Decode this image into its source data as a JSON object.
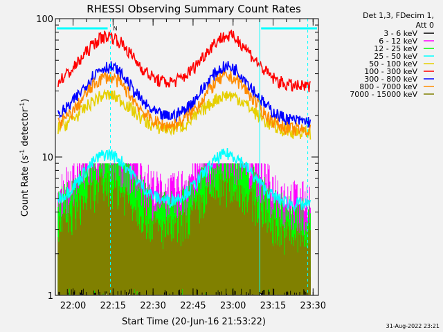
{
  "chart_data": {
    "type": "line",
    "title": "RHESSI Observing Summary Count Rates",
    "xlabel": "Start Time (20-Jun-16 21:53:22)",
    "ylabel_main": "Count Rate (s",
    "ylabel_sup1": "-1",
    "ylabel_mid": " detector",
    "ylabel_sup2": "-1",
    "ylabel_end": ")",
    "yscale": "log",
    "ylim": [
      1,
      100
    ],
    "xlim": [
      "21:53:22",
      "23:32:00"
    ],
    "x_ticks": [
      "22:00",
      "22:15",
      "22:30",
      "22:45",
      "23:00",
      "23:15",
      "23:30"
    ],
    "y_ticks": [
      "1",
      "10",
      "100"
    ],
    "legend_header": [
      "Det 1,3, FDecim 1,",
      "Att 0"
    ],
    "legend_position": "right",
    "timestamp": "31-Aug-2022 23:21",
    "night_label": "N",
    "night_markers": [
      "22:14",
      "23:28"
    ],
    "night_lines": [
      "23:10"
    ],
    "grid": false,
    "series": [
      {
        "name": "3 - 6 keV",
        "color": "#000000",
        "style": "noise",
        "base": 1.5
      },
      {
        "name": "6 - 12 keV",
        "color": "#ff00ff",
        "style": "noise",
        "base": 3.2
      },
      {
        "name": "12 - 25 keV",
        "color": "#00ff00",
        "style": "noise",
        "base": 2.4
      },
      {
        "name": "25 - 50 keV",
        "color": "#00ffff",
        "style": "orbit",
        "low": 4.5,
        "high": 10.5
      },
      {
        "name": "50 - 100 keV",
        "color": "#e6cf00",
        "style": "orbit",
        "low": 15,
        "high": 28
      },
      {
        "name": "100 - 300 keV",
        "color": "#ff0000",
        "style": "orbit",
        "low": 32,
        "high": 75
      },
      {
        "name": "300 - 800 keV",
        "color": "#0000ff",
        "style": "orbit",
        "low": 18,
        "high": 45
      },
      {
        "name": "800 - 7000 keV",
        "color": "#ff8c00",
        "style": "orbit",
        "low": 15.5,
        "high": 38
      },
      {
        "name": "7000 - 15000 keV",
        "color": "#808000",
        "style": "noise",
        "base": 1.6
      }
    ]
  }
}
